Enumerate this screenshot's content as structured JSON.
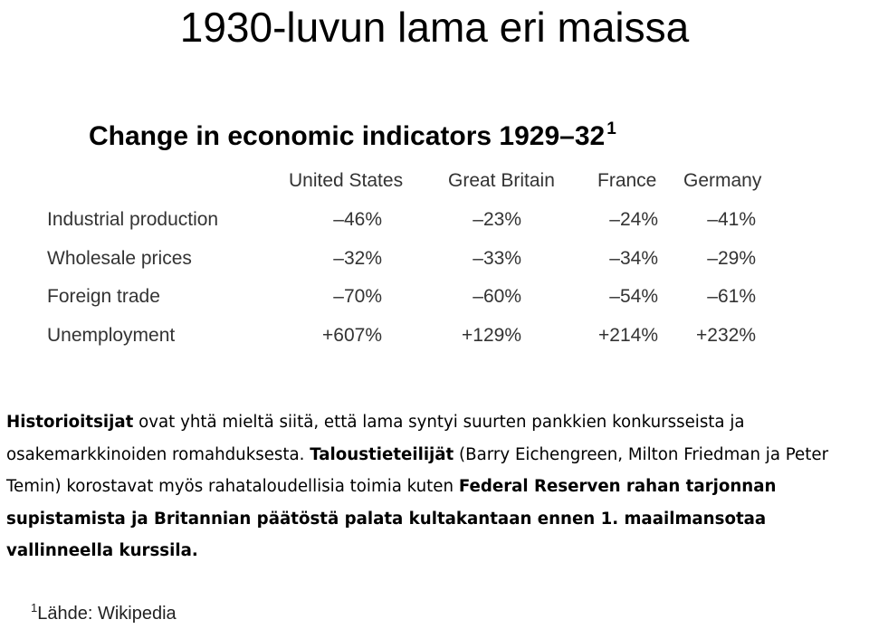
{
  "slide": {
    "title": "1930-luvun lama eri maissa"
  },
  "table": {
    "caption": "Change in economic indicators 1929–32",
    "caption_footnote_mark": "1",
    "columns": [
      "United States",
      "Great Britain",
      "France",
      "Germany"
    ],
    "rows": [
      {
        "label": "Industrial production",
        "values": [
          "–46%",
          "–23%",
          "–24%",
          "–41%"
        ]
      },
      {
        "label": "Wholesale prices",
        "values": [
          "–32%",
          "–33%",
          "–34%",
          "–29%"
        ]
      },
      {
        "label": "Foreign trade",
        "values": [
          "–70%",
          "–60%",
          "–54%",
          "–61%"
        ]
      },
      {
        "label": "Unemployment",
        "values": [
          "+607%",
          "+129%",
          "+214%",
          "+232%"
        ]
      }
    ]
  },
  "paragraph": {
    "bold_1": "Historioitsijat",
    "text_1": " ovat yhtä mieltä siitä, että lama syntyi suurten pankkien konkursseista ja osakemarkkinoiden romahduksesta. ",
    "bold_2": "Taloustieteilijät",
    "text_2": " (Barry Eichengreen, Milton Friedman ja Peter Temin) korostavat myös rahataloudellisia toimia kuten ",
    "bold_3": "Federal Reserven rahan tarjonnan supistamista ja Britannian päätöstä palata kultakantaan  ennen  1. maailmansotaa vallinneella kurssila."
  },
  "footnote": {
    "mark": "1",
    "text": "Lähde: Wikipedia"
  }
}
